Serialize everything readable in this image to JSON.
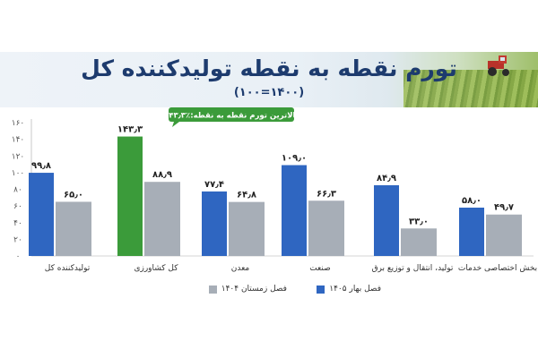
{
  "title": "تورم نقطه به نقطه تولیدکننده کل",
  "subtitle": "(۱۴۰۰=۱۰۰)",
  "colors": {
    "spring": "#2f66c1",
    "winter": "#a7aeb7",
    "highlight": "#3b9b3a",
    "callout": "#3b9b3a",
    "title": "#1d3b6e"
  },
  "chart_data": {
    "type": "bar",
    "categories": [
      "تولیدکننده کل",
      "کل کشاورزی",
      "معدن",
      "صنعت",
      "تولید، انتقال و توزیع برق",
      "بخش اختصاصی خدمات"
    ],
    "series": [
      {
        "name": "فصل بهار ۱۴۰۵",
        "values": [
          99.8,
          143.3,
          77.4,
          109.0,
          84.9,
          58.0
        ],
        "labels": [
          "۹۹٫۸",
          "۱۴۳٫۳",
          "۷۷٫۴",
          "۱۰۹٫۰",
          "۸۴٫۹",
          "۵۸٫۰"
        ]
      },
      {
        "name": "فصل زمستان ۱۴۰۴",
        "values": [
          65.0,
          88.9,
          64.8,
          66.3,
          33.0,
          49.7
        ],
        "labels": [
          "۶۵٫۰",
          "۸۸٫۹",
          "۶۴٫۸",
          "۶۶٫۳",
          "۳۳٫۰",
          "۴۹٫۷"
        ]
      }
    ],
    "highlight_index": 1,
    "annotation": "بالاترین تورم نقطه به نقطه:٪۱۴۳٫۳",
    "yticks": [
      0,
      20,
      40,
      60,
      80,
      100,
      120,
      140,
      160
    ],
    "ytick_labels": [
      "۰",
      "۲۰",
      "۴۰",
      "۶۰",
      "۸۰",
      "۱۰۰",
      "۱۲۰",
      "۱۴۰",
      "۱۶۰"
    ],
    "ylim": [
      0,
      160
    ],
    "grid": false,
    "legend_position": "bottom"
  }
}
